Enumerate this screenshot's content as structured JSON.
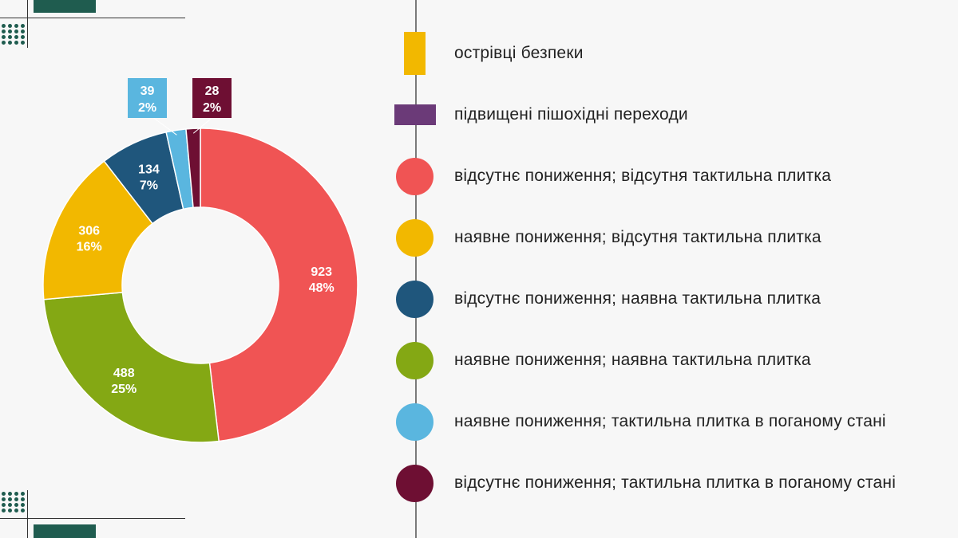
{
  "chart_data": {
    "type": "pie",
    "donut": true,
    "slices": [
      {
        "value": 923,
        "percent": "48%",
        "color": "#f05454",
        "legend": "відсутнє пониження;  відсутня тактильна плитка"
      },
      {
        "value": 488,
        "percent": "25%",
        "color": "#84a814",
        "legend": "наявне пониження; наявна тактильна плитка"
      },
      {
        "value": 306,
        "percent": "16%",
        "color": "#f2b800",
        "legend": "наявне пониження; відсутня тактильна плитка"
      },
      {
        "value": 134,
        "percent": "7%",
        "color": "#1f567c",
        "legend": "відсутнє пониження; наявна тактильна плитка"
      },
      {
        "value": 39,
        "percent": "2%",
        "color": "#5ab6df",
        "legend": "наявне пониження; тактильна плитка в поганому стані"
      },
      {
        "value": 28,
        "percent": "2%",
        "color": "#6e0f33",
        "legend": "відсутнє пониження; тактильна плитка в поганому стані"
      }
    ]
  },
  "legend": [
    {
      "label": "острівці безпеки",
      "color": "#f2b800",
      "shape": "rect-tall"
    },
    {
      "label": "підвищені пішохідні переходи",
      "color": "#6b3a78",
      "shape": "rect-wide"
    },
    {
      "label": "відсутнє пониження;  відсутня тактильна плитка",
      "color": "#f05454",
      "shape": "circle"
    },
    {
      "label": "наявне пониження; відсутня тактильна плитка",
      "color": "#f2b800",
      "shape": "circle"
    },
    {
      "label": "відсутнє пониження; наявна тактильна плитка",
      "color": "#1f567c",
      "shape": "circle"
    },
    {
      "label": "наявне пониження; наявна тактильна плитка",
      "color": "#84a814",
      "shape": "circle"
    },
    {
      "label": "наявне пониження; тактильна плитка в поганому стані",
      "color": "#5ab6df",
      "shape": "circle"
    },
    {
      "label": "відсутнє пониження; тактильна плитка в поганому стані",
      "color": "#6e0f33",
      "shape": "circle"
    }
  ]
}
